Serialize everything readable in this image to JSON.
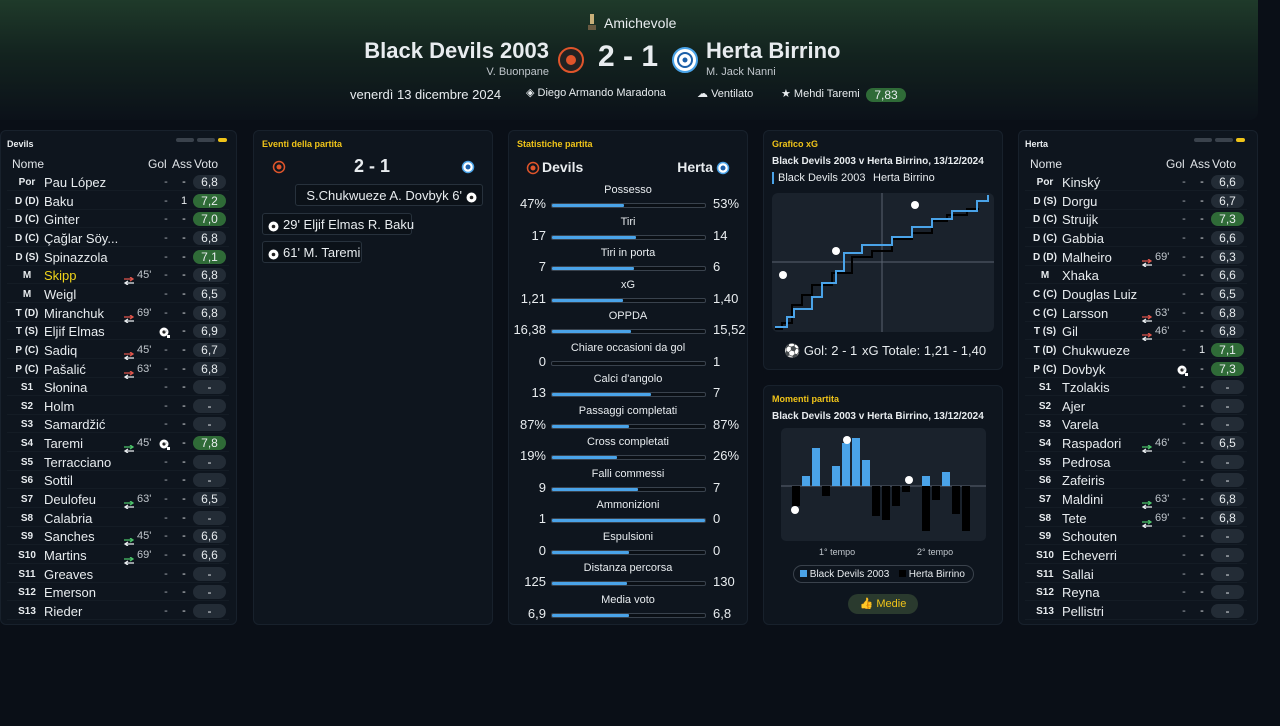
{
  "header": {
    "competition": "Amichevole",
    "home": {
      "name": "Black Devils 2003",
      "manager": "V. Buonpane"
    },
    "score": "2 - 1",
    "away": {
      "name": "Herta Birrino",
      "manager": "M. Jack Nanni"
    },
    "date": "venerdì 13 dicembre 2024",
    "stadium": "Diego Armando Maradona",
    "weather": "Ventilato",
    "player_of_match": "Mehdi Taremi",
    "player_of_match_rating": "7,83"
  },
  "lineups": [
    {
      "title": "Devils",
      "columns": [
        "Nome",
        "Gol",
        "Ass",
        "Voto"
      ],
      "players": [
        {
          "pos": "Por",
          "name": "Pau López",
          "gol": "-",
          "ass": "-",
          "rating": "6,8"
        },
        {
          "pos": "D (D)",
          "name": "Baku",
          "gol": "-",
          "ass": "1",
          "rating": "7,2"
        },
        {
          "pos": "D (C)",
          "name": "Ginter",
          "gol": "-",
          "ass": "-",
          "rating": "7,0"
        },
        {
          "pos": "D (C)",
          "name": "Çağlar Söy...",
          "gol": "-",
          "ass": "-",
          "rating": "6,8"
        },
        {
          "pos": "D (S)",
          "name": "Spinazzola",
          "gol": "-",
          "ass": "-",
          "rating": "7,1"
        },
        {
          "pos": "M",
          "name": "Skipp",
          "highlighted": true,
          "sub": "45'",
          "sub_dir": "out",
          "gol": "-",
          "ass": "-",
          "rating": "6,8"
        },
        {
          "pos": "M",
          "name": "Weigl",
          "gol": "-",
          "ass": "-",
          "rating": "6,5"
        },
        {
          "pos": "T (D)",
          "name": "Miranchuk",
          "sub": "69'",
          "sub_dir": "out",
          "gol": "-",
          "ass": "-",
          "rating": "6,8"
        },
        {
          "pos": "T (S)",
          "name": "Eljif Elmas",
          "goal": true,
          "gol": "-",
          "ass": "-",
          "rating": "6,9"
        },
        {
          "pos": "P (C)",
          "name": "Sadiq",
          "sub": "45'",
          "sub_dir": "out",
          "gol": "-",
          "ass": "-",
          "rating": "6,7"
        },
        {
          "pos": "P (C)",
          "name": "Pašalić",
          "sub": "63'",
          "sub_dir": "out",
          "gol": "-",
          "ass": "-",
          "rating": "6,8"
        },
        {
          "pos": "S1",
          "name": "Słonina",
          "gol": "-",
          "ass": "-",
          "rating": "-"
        },
        {
          "pos": "S2",
          "name": "Holm",
          "gol": "-",
          "ass": "-",
          "rating": "-"
        },
        {
          "pos": "S3",
          "name": "Samardžić",
          "gol": "-",
          "ass": "-",
          "rating": "-"
        },
        {
          "pos": "S4",
          "name": "Taremi",
          "sub": "45'",
          "sub_dir": "in",
          "goal": true,
          "gol": "-",
          "ass": "-",
          "rating": "7,8"
        },
        {
          "pos": "S5",
          "name": "Terracciano",
          "gol": "-",
          "ass": "-",
          "rating": "-"
        },
        {
          "pos": "S6",
          "name": "Sottil",
          "gol": "-",
          "ass": "-",
          "rating": "-"
        },
        {
          "pos": "S7",
          "name": "Deulofeu",
          "sub": "63'",
          "sub_dir": "in",
          "gol": "-",
          "ass": "-",
          "rating": "6,5"
        },
        {
          "pos": "S8",
          "name": "Calabria",
          "gol": "-",
          "ass": "-",
          "rating": "-"
        },
        {
          "pos": "S9",
          "name": "Sanches",
          "sub": "45'",
          "sub_dir": "in",
          "gol": "-",
          "ass": "-",
          "rating": "6,6"
        },
        {
          "pos": "S10",
          "name": "Martins",
          "sub": "69'",
          "sub_dir": "in",
          "gol": "-",
          "ass": "-",
          "rating": "6,6"
        },
        {
          "pos": "S11",
          "name": "Greaves",
          "gol": "-",
          "ass": "-",
          "rating": "-"
        },
        {
          "pos": "S12",
          "name": "Emerson",
          "gol": "-",
          "ass": "-",
          "rating": "-"
        },
        {
          "pos": "S13",
          "name": "Rieder",
          "gol": "-",
          "ass": "-",
          "rating": "-"
        }
      ]
    },
    {
      "title": "Herta",
      "columns": [
        "Nome",
        "Gol",
        "Ass",
        "Voto"
      ],
      "players": [
        {
          "pos": "Por",
          "name": "Kinský",
          "gol": "-",
          "ass": "-",
          "rating": "6,6"
        },
        {
          "pos": "D (S)",
          "name": "Dorgu",
          "gol": "-",
          "ass": "-",
          "rating": "6,7"
        },
        {
          "pos": "D (C)",
          "name": "Struijk",
          "gol": "-",
          "ass": "-",
          "rating": "7,3"
        },
        {
          "pos": "D (C)",
          "name": "Gabbia",
          "gol": "-",
          "ass": "-",
          "rating": "6,6"
        },
        {
          "pos": "D (D)",
          "name": "Malheiro",
          "sub": "69'",
          "sub_dir": "out",
          "gol": "-",
          "ass": "-",
          "rating": "6,3"
        },
        {
          "pos": "M",
          "name": "Xhaka",
          "gol": "-",
          "ass": "-",
          "rating": "6,6"
        },
        {
          "pos": "C (C)",
          "name": "Douglas Luiz",
          "gol": "-",
          "ass": "-",
          "rating": "6,5"
        },
        {
          "pos": "C (C)",
          "name": "Larsson",
          "sub": "63'",
          "sub_dir": "out",
          "gol": "-",
          "ass": "-",
          "rating": "6,8"
        },
        {
          "pos": "T (S)",
          "name": "Gil",
          "sub": "46'",
          "sub_dir": "out",
          "gol": "-",
          "ass": "-",
          "rating": "6,8"
        },
        {
          "pos": "T (D)",
          "name": "Chukwueze",
          "gol": "-",
          "ass": "1",
          "rating": "7,1"
        },
        {
          "pos": "P (C)",
          "name": "Dovbyk",
          "goal": true,
          "gol": "-",
          "ass": "-",
          "rating": "7,3"
        },
        {
          "pos": "S1",
          "name": "Tzolakis",
          "gol": "-",
          "ass": "-",
          "rating": "-"
        },
        {
          "pos": "S2",
          "name": "Ajer",
          "gol": "-",
          "ass": "-",
          "rating": "-"
        },
        {
          "pos": "S3",
          "name": "Varela",
          "gol": "-",
          "ass": "-",
          "rating": "-"
        },
        {
          "pos": "S4",
          "name": "Raspadori",
          "sub": "46'",
          "sub_dir": "in",
          "gol": "-",
          "ass": "-",
          "rating": "6,5"
        },
        {
          "pos": "S5",
          "name": "Pedrosa",
          "gol": "-",
          "ass": "-",
          "rating": "-"
        },
        {
          "pos": "S6",
          "name": "Zafeiris",
          "gol": "-",
          "ass": "-",
          "rating": "-"
        },
        {
          "pos": "S7",
          "name": "Maldini",
          "sub": "63'",
          "sub_dir": "in",
          "gol": "-",
          "ass": "-",
          "rating": "6,8"
        },
        {
          "pos": "S8",
          "name": "Tete",
          "sub": "69'",
          "sub_dir": "in",
          "gol": "-",
          "ass": "-",
          "rating": "6,8"
        },
        {
          "pos": "S9",
          "name": "Schouten",
          "gol": "-",
          "ass": "-",
          "rating": "-"
        },
        {
          "pos": "S10",
          "name": "Echeverri",
          "gol": "-",
          "ass": "-",
          "rating": "-"
        },
        {
          "pos": "S11",
          "name": "Sallai",
          "gol": "-",
          "ass": "-",
          "rating": "-"
        },
        {
          "pos": "S12",
          "name": "Reyna",
          "gol": "-",
          "ass": "-",
          "rating": "-"
        },
        {
          "pos": "S13",
          "name": "Pellistri",
          "gol": "-",
          "ass": "-",
          "rating": "-"
        }
      ]
    }
  ],
  "events": {
    "title": "Eventi della partita",
    "score": "2 - 1",
    "items": [
      {
        "side": "away",
        "text": "S.Chukwueze A. Dovbyk 6'"
      },
      {
        "side": "home",
        "text": "29' Eljif Elmas R. Baku"
      },
      {
        "side": "home",
        "text": "61' M. Taremi"
      }
    ]
  },
  "stats": {
    "title": "Statistiche partita",
    "home": "Devils",
    "away": "Herta",
    "rows": [
      {
        "label": "Possesso",
        "home": "47%",
        "away": "53%"
      },
      {
        "label": "Tiri",
        "home": "17",
        "away": "14"
      },
      {
        "label": "Tiri in porta",
        "home": "7",
        "away": "6"
      },
      {
        "label": "xG",
        "home": "1,21",
        "away": "1,40"
      },
      {
        "label": "OPPDA",
        "home": "16,38",
        "away": "15,52"
      },
      {
        "label": "Chiare occasioni da gol",
        "home": "0",
        "away": "1"
      },
      {
        "label": "Calci d'angolo",
        "home": "13",
        "away": "7"
      },
      {
        "label": "Passaggi completati",
        "home": "87%",
        "away": "87%"
      },
      {
        "label": "Cross completati",
        "home": "19%",
        "away": "26%"
      },
      {
        "label": "Falli commessi",
        "home": "9",
        "away": "7"
      },
      {
        "label": "Ammonizioni",
        "home": "1",
        "away": "0"
      },
      {
        "label": "Espulsioni",
        "home": "0",
        "away": "0"
      },
      {
        "label": "Distanza percorsa",
        "home": "125",
        "away": "130"
      },
      {
        "label": "Media voto",
        "home": "6,9",
        "away": "6,8"
      }
    ]
  },
  "xg_chart": {
    "title": "Grafico xG",
    "subtitle": "Black Devils 2003 v Herta Birrino, 13/12/2024",
    "legend": [
      "Black Devils 2003",
      "Herta Birrino"
    ],
    "goals": "Gol: 2 - 1",
    "xg_total": "xG Totale: 1,21 - 1,40"
  },
  "momentum": {
    "title": "Momenti partita",
    "subtitle": "Black Devils 2003 v Herta Birrino, 13/12/2024",
    "halves": [
      "1° tempo",
      "2° tempo"
    ],
    "legend": [
      "Black Devils 2003",
      "Herta Birrino"
    ],
    "button": "Medie"
  }
}
